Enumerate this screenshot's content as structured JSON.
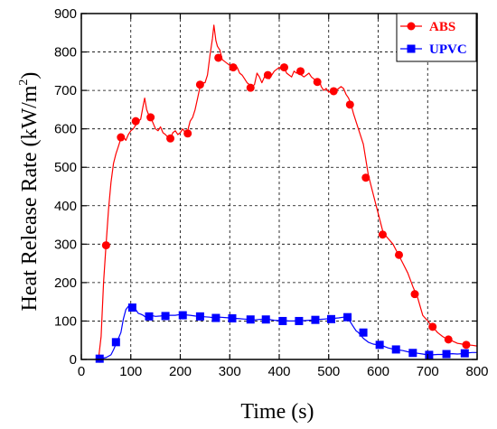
{
  "chart_data": {
    "type": "line",
    "xlabel": "Time (s)",
    "ylabel": "Heat Release Rate (kW/m",
    "ylabel_superscript": "2",
    "ylabel_suffix": ")",
    "xlim": [
      0,
      800
    ],
    "ylim": [
      0,
      900
    ],
    "xticks": [
      0,
      100,
      200,
      300,
      400,
      500,
      600,
      700,
      800
    ],
    "yticks": [
      0,
      100,
      200,
      300,
      400,
      500,
      600,
      700,
      800,
      900
    ],
    "grid": true,
    "legend_position": "top-right",
    "series": [
      {
        "name": "ABS",
        "color": "#ff0000",
        "marker": "circle",
        "line": [
          [
            30,
            0
          ],
          [
            35,
            5
          ],
          [
            40,
            60
          ],
          [
            45,
            200
          ],
          [
            50,
            300
          ],
          [
            55,
            390
          ],
          [
            60,
            460
          ],
          [
            65,
            510
          ],
          [
            70,
            535
          ],
          [
            75,
            555
          ],
          [
            80,
            575
          ],
          [
            85,
            580
          ],
          [
            90,
            570
          ],
          [
            95,
            585
          ],
          [
            100,
            595
          ],
          [
            105,
            600
          ],
          [
            110,
            610
          ],
          [
            115,
            620
          ],
          [
            120,
            625
          ],
          [
            125,
            660
          ],
          [
            128,
            680
          ],
          [
            132,
            650
          ],
          [
            135,
            640
          ],
          [
            140,
            630
          ],
          [
            145,
            615
          ],
          [
            150,
            600
          ],
          [
            155,
            595
          ],
          [
            160,
            605
          ],
          [
            165,
            590
          ],
          [
            170,
            585
          ],
          [
            175,
            578
          ],
          [
            180,
            575
          ],
          [
            185,
            590
          ],
          [
            190,
            595
          ],
          [
            195,
            585
          ],
          [
            200,
            590
          ],
          [
            205,
            600
          ],
          [
            210,
            590
          ],
          [
            215,
            595
          ],
          [
            220,
            620
          ],
          [
            225,
            630
          ],
          [
            230,
            650
          ],
          [
            235,
            680
          ],
          [
            240,
            710
          ],
          [
            245,
            720
          ],
          [
            250,
            720
          ],
          [
            255,
            740
          ],
          [
            260,
            790
          ],
          [
            265,
            835
          ],
          [
            268,
            870
          ],
          [
            272,
            830
          ],
          [
            275,
            815
          ],
          [
            280,
            805
          ],
          [
            285,
            780
          ],
          [
            290,
            775
          ],
          [
            295,
            770
          ],
          [
            300,
            765
          ],
          [
            305,
            760
          ],
          [
            310,
            762
          ],
          [
            315,
            760
          ],
          [
            320,
            745
          ],
          [
            325,
            740
          ],
          [
            330,
            730
          ],
          [
            335,
            720
          ],
          [
            340,
            715
          ],
          [
            345,
            710
          ],
          [
            350,
            715
          ],
          [
            355,
            745
          ],
          [
            360,
            735
          ],
          [
            365,
            720
          ],
          [
            370,
            735
          ],
          [
            375,
            740
          ],
          [
            380,
            730
          ],
          [
            385,
            740
          ],
          [
            390,
            750
          ],
          [
            395,
            755
          ],
          [
            400,
            760
          ],
          [
            405,
            755
          ],
          [
            410,
            760
          ],
          [
            415,
            745
          ],
          [
            420,
            740
          ],
          [
            425,
            735
          ],
          [
            430,
            750
          ],
          [
            435,
            745
          ],
          [
            440,
            750
          ],
          [
            445,
            740
          ],
          [
            450,
            735
          ],
          [
            455,
            740
          ],
          [
            460,
            745
          ],
          [
            465,
            735
          ],
          [
            470,
            730
          ],
          [
            475,
            725
          ],
          [
            480,
            730
          ],
          [
            485,
            710
          ],
          [
            490,
            700
          ],
          [
            495,
            705
          ],
          [
            500,
            695
          ],
          [
            505,
            700
          ],
          [
            510,
            695
          ],
          [
            515,
            700
          ],
          [
            520,
            705
          ],
          [
            525,
            710
          ],
          [
            530,
            705
          ],
          [
            535,
            690
          ],
          [
            540,
            680
          ],
          [
            545,
            665
          ],
          [
            550,
            640
          ],
          [
            560,
            600
          ],
          [
            570,
            560
          ],
          [
            580,
            480
          ],
          [
            590,
            430
          ],
          [
            600,
            380
          ],
          [
            610,
            330
          ],
          [
            620,
            315
          ],
          [
            630,
            300
          ],
          [
            640,
            275
          ],
          [
            650,
            250
          ],
          [
            660,
            225
          ],
          [
            670,
            190
          ],
          [
            680,
            160
          ],
          [
            690,
            115
          ],
          [
            700,
            100
          ],
          [
            710,
            85
          ],
          [
            720,
            70
          ],
          [
            730,
            60
          ],
          [
            740,
            52
          ],
          [
            750,
            48
          ],
          [
            760,
            42
          ],
          [
            770,
            40
          ],
          [
            780,
            38
          ],
          [
            790,
            37
          ],
          [
            800,
            35
          ]
        ],
        "markers": [
          [
            37,
            2
          ],
          [
            50,
            297
          ],
          [
            80,
            578
          ],
          [
            110,
            620
          ],
          [
            140,
            630
          ],
          [
            180,
            575
          ],
          [
            215,
            588
          ],
          [
            240,
            715
          ],
          [
            277,
            785
          ],
          [
            307,
            760
          ],
          [
            342,
            707
          ],
          [
            377,
            740
          ],
          [
            410,
            760
          ],
          [
            443,
            750
          ],
          [
            477,
            722
          ],
          [
            510,
            698
          ],
          [
            543,
            663
          ],
          [
            575,
            473
          ],
          [
            609,
            325
          ],
          [
            642,
            272
          ],
          [
            674,
            170
          ],
          [
            710,
            85
          ],
          [
            742,
            52
          ],
          [
            778,
            38
          ]
        ]
      },
      {
        "name": "UPVC",
        "color": "#0000ff",
        "marker": "square",
        "line": [
          [
            30,
            0
          ],
          [
            50,
            5
          ],
          [
            60,
            12
          ],
          [
            65,
            25
          ],
          [
            70,
            40
          ],
          [
            75,
            55
          ],
          [
            80,
            70
          ],
          [
            85,
            105
          ],
          [
            90,
            130
          ],
          [
            95,
            138
          ],
          [
            100,
            132
          ],
          [
            105,
            135
          ],
          [
            110,
            130
          ],
          [
            115,
            120
          ],
          [
            120,
            118
          ],
          [
            125,
            115
          ],
          [
            130,
            110
          ],
          [
            135,
            112
          ],
          [
            140,
            115
          ],
          [
            150,
            112
          ],
          [
            160,
            113
          ],
          [
            170,
            115
          ],
          [
            180,
            115
          ],
          [
            190,
            115
          ],
          [
            200,
            117
          ],
          [
            210,
            116
          ],
          [
            220,
            115
          ],
          [
            230,
            113
          ],
          [
            240,
            112
          ],
          [
            250,
            111
          ],
          [
            260,
            110
          ],
          [
            270,
            108
          ],
          [
            280,
            110
          ],
          [
            290,
            109
          ],
          [
            300,
            108
          ],
          [
            310,
            107
          ],
          [
            320,
            106
          ],
          [
            330,
            105
          ],
          [
            340,
            104
          ],
          [
            350,
            103
          ],
          [
            360,
            104
          ],
          [
            370,
            105
          ],
          [
            380,
            104
          ],
          [
            390,
            102
          ],
          [
            400,
            101
          ],
          [
            410,
            101
          ],
          [
            420,
            100
          ],
          [
            430,
            100
          ],
          [
            440,
            101
          ],
          [
            450,
            101
          ],
          [
            460,
            102
          ],
          [
            470,
            103
          ],
          [
            480,
            104
          ],
          [
            490,
            105
          ],
          [
            500,
            106
          ],
          [
            510,
            107
          ],
          [
            520,
            108
          ],
          [
            530,
            110
          ],
          [
            540,
            105
          ],
          [
            545,
            95
          ],
          [
            550,
            85
          ],
          [
            555,
            75
          ],
          [
            560,
            70
          ],
          [
            570,
            55
          ],
          [
            580,
            45
          ],
          [
            590,
            40
          ],
          [
            600,
            38
          ],
          [
            610,
            35
          ],
          [
            620,
            30
          ],
          [
            630,
            27
          ],
          [
            640,
            25
          ],
          [
            650,
            23
          ],
          [
            660,
            20
          ],
          [
            670,
            18
          ],
          [
            680,
            16
          ],
          [
            690,
            14
          ],
          [
            700,
            12
          ],
          [
            710,
            12
          ],
          [
            720,
            13
          ],
          [
            730,
            13
          ],
          [
            740,
            14
          ],
          [
            750,
            15
          ],
          [
            760,
            14
          ],
          [
            770,
            15
          ],
          [
            780,
            17
          ],
          [
            790,
            18
          ],
          [
            800,
            18
          ]
        ],
        "markers": [
          [
            37,
            2
          ],
          [
            70,
            45
          ],
          [
            103,
            135
          ],
          [
            137,
            112
          ],
          [
            170,
            113
          ],
          [
            205,
            115
          ],
          [
            240,
            112
          ],
          [
            272,
            108
          ],
          [
            305,
            107
          ],
          [
            342,
            104
          ],
          [
            373,
            104
          ],
          [
            407,
            100
          ],
          [
            440,
            100
          ],
          [
            473,
            103
          ],
          [
            505,
            105
          ],
          [
            538,
            110
          ],
          [
            570,
            70
          ],
          [
            603,
            38
          ],
          [
            636,
            26
          ],
          [
            670,
            17
          ],
          [
            703,
            12
          ],
          [
            738,
            14
          ],
          [
            775,
            16
          ]
        ]
      }
    ]
  }
}
